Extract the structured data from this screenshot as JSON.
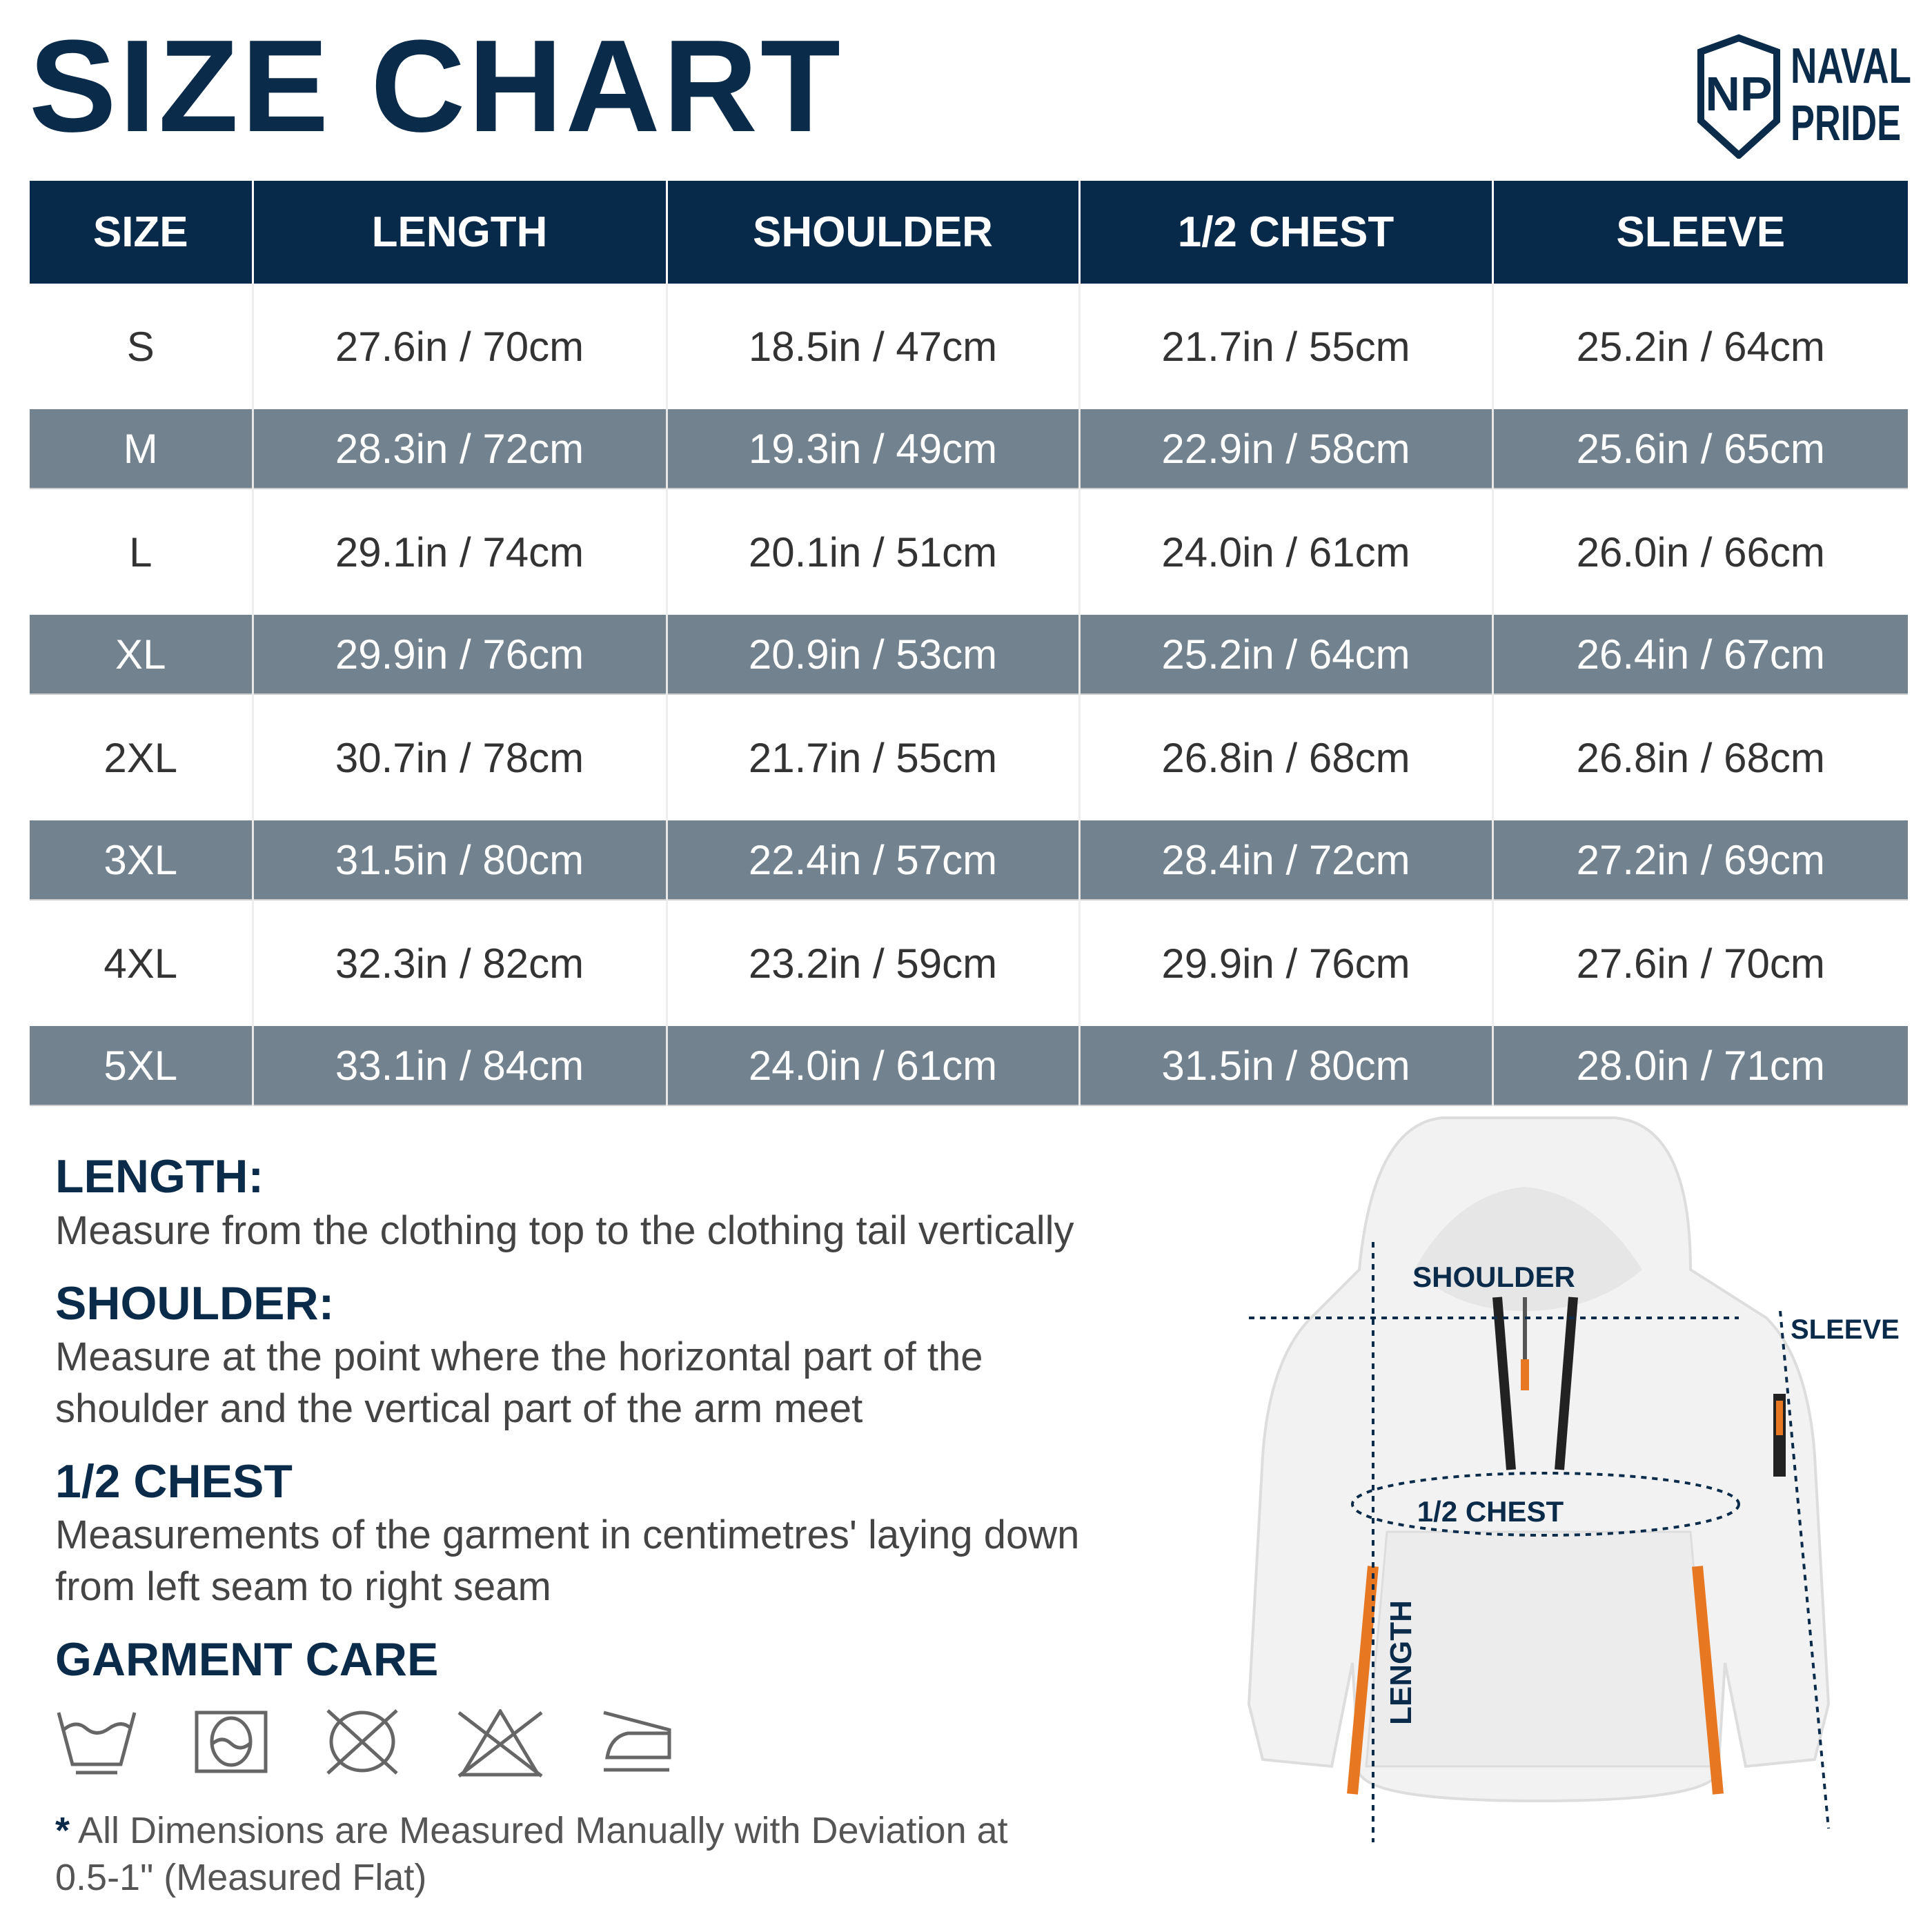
{
  "title": "SIZE CHART",
  "logo": {
    "line1": "NAVAL",
    "line2": "PRIDE",
    "monogram": "NP"
  },
  "colors": {
    "navy": "#072a4a",
    "row_grey": "#73828f",
    "accent_orange": "#e87722"
  },
  "table": {
    "headers": [
      "SIZE",
      "LENGTH",
      "SHOULDER",
      "1/2 CHEST",
      "SLEEVE"
    ],
    "rows": [
      [
        "S",
        "27.6in / 70cm",
        "18.5in / 47cm",
        "21.7in / 55cm",
        "25.2in / 64cm"
      ],
      [
        "M",
        "28.3in / 72cm",
        "19.3in / 49cm",
        "22.9in / 58cm",
        "25.6in / 65cm"
      ],
      [
        "L",
        "29.1in / 74cm",
        "20.1in / 51cm",
        "24.0in / 61cm",
        "26.0in / 66cm"
      ],
      [
        "XL",
        "29.9in / 76cm",
        "20.9in / 53cm",
        "25.2in / 64cm",
        "26.4in / 67cm"
      ],
      [
        "2XL",
        "30.7in / 78cm",
        "21.7in / 55cm",
        "26.8in / 68cm",
        "26.8in / 68cm"
      ],
      [
        "3XL",
        "31.5in / 80cm",
        "22.4in / 57cm",
        "28.4in / 72cm",
        "27.2in / 69cm"
      ],
      [
        "4XL",
        "32.3in / 82cm",
        "23.2in / 59cm",
        "29.9in / 76cm",
        "27.6in / 70cm"
      ],
      [
        "5XL",
        "33.1in / 84cm",
        "24.0in / 61cm",
        "31.5in / 80cm",
        "28.0in / 71cm"
      ]
    ]
  },
  "info": [
    {
      "heading": "LENGTH:",
      "text": "Measure from the clothing top to the clothing tail vertically"
    },
    {
      "heading": "SHOULDER:",
      "text": "Measure at the point where the horizontal part of the shoulder and the vertical part of the arm meet"
    },
    {
      "heading": "1/2 CHEST",
      "text": "Measurements of the garment in centimetres' laying down from left seam to right seam"
    }
  ],
  "care": {
    "heading": "GARMENT CARE",
    "icons": [
      "hand-wash-icon",
      "tumble-dry-icon",
      "do-not-dry-clean-icon",
      "do-not-bleach-icon",
      "iron-icon"
    ]
  },
  "note": {
    "asterisk": "*",
    "text": "All Dimensions are Measured Manually with Deviation at 0.5-1\" (Measured Flat)"
  },
  "diagram": {
    "shoulder": "SHOULDER",
    "chest": "1/2 CHEST",
    "length": "LENGTH",
    "sleeve": "SLEEVE"
  }
}
